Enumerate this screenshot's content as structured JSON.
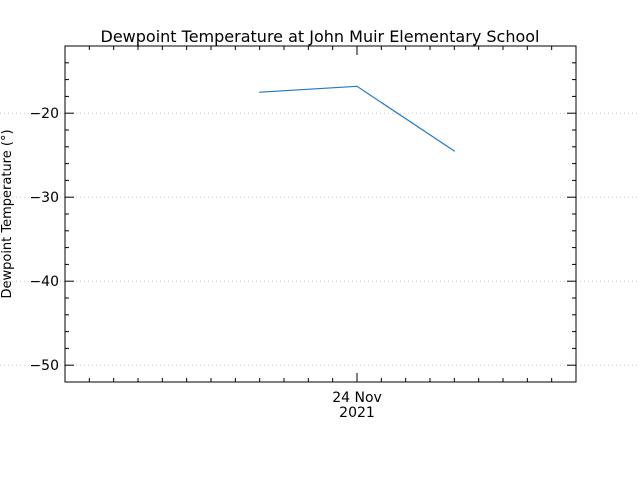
{
  "chart_data": {
    "type": "line",
    "title": "Dewpoint Temperature at John Muir Elementary School",
    "ylabel": "Dewpoint Temperature (°)",
    "xlabel": "",
    "x": [
      "2021-11-24T00:00",
      "2021-11-24T01:00",
      "2021-11-24T02:00"
    ],
    "x_tick_labels": [
      {
        "value": "2021-11-24T01:00",
        "line1": "24 Nov",
        "line2": "2021"
      }
    ],
    "xlim": [
      "2021-11-23T22:00",
      "2021-11-24T03:15"
    ],
    "series": [
      {
        "values": [
          -17.5,
          -16.8,
          -24.5
        ],
        "color": "#1f77c4"
      }
    ],
    "ylim": [
      -52,
      -12
    ],
    "yticks": [
      -20,
      -30,
      -40,
      -50
    ],
    "ytick_labels": [
      "−20",
      "−30",
      "−40",
      "−50"
    ],
    "grid": "horizontal dotted",
    "legend": "none"
  }
}
